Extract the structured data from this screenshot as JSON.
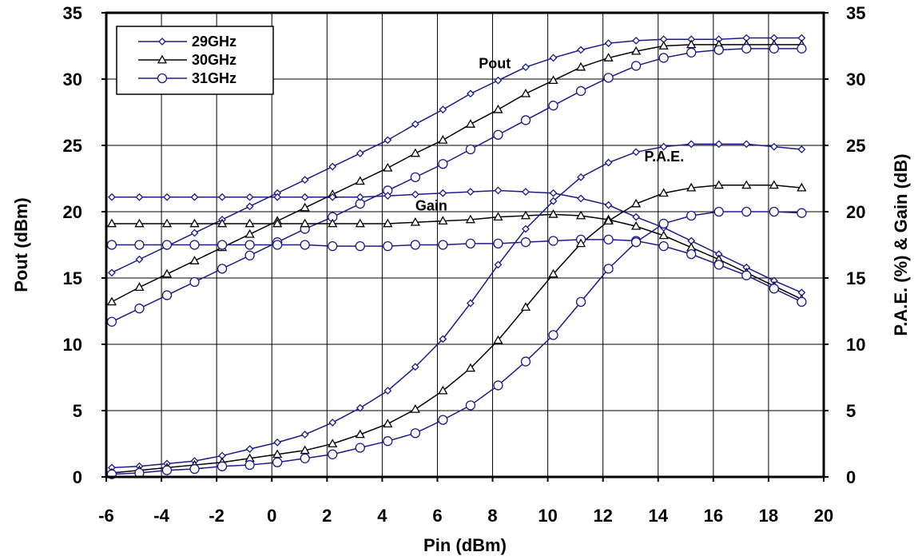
{
  "chart_data": {
    "type": "line",
    "xlabel": "Pin (dBm)",
    "ylabel_left": "Pout (dBm)",
    "ylabel_right": "P.A.E. (%) & Gain (dB)",
    "xlim": [
      -6,
      20
    ],
    "ylim_left": [
      0,
      35
    ],
    "ylim_right": [
      0,
      35
    ],
    "xticks": [
      -6,
      -4,
      -2,
      0,
      2,
      4,
      6,
      8,
      10,
      12,
      14,
      16,
      18,
      20
    ],
    "yticks_left": [
      0,
      5,
      10,
      15,
      20,
      25,
      30,
      35
    ],
    "yticks_right": [
      0,
      5,
      10,
      15,
      20,
      25,
      30,
      35
    ],
    "grid": true,
    "legend": {
      "placement": "top-left",
      "entries": [
        "29GHz",
        "30GHz",
        "31GHz"
      ]
    },
    "annotations": [
      {
        "text": "Pout",
        "x": 7.5,
        "y": 30.8
      },
      {
        "text": "P.A.E.",
        "x": 13.5,
        "y": 23.8
      },
      {
        "text": "Gain",
        "x": 5.2,
        "y": 20.1
      }
    ],
    "colors": {
      "29GHz": "#1a1a8c",
      "30GHz": "#000000",
      "31GHz": "#1a1a8c"
    },
    "x": [
      -5.8,
      -4.8,
      -3.8,
      -2.8,
      -1.8,
      -0.8,
      0.2,
      1.2,
      2.2,
      3.2,
      4.2,
      5.2,
      6.2,
      7.2,
      8.2,
      9.2,
      10.2,
      11.2,
      12.2,
      13.2,
      14.2,
      15.2,
      16.2,
      17.2,
      18.2,
      19.2
    ],
    "series": [
      {
        "name": "29GHz",
        "group": "Pout",
        "marker": "diamond",
        "values": [
          15.4,
          16.4,
          17.4,
          18.4,
          19.4,
          20.4,
          21.4,
          22.4,
          23.4,
          24.4,
          25.4,
          26.6,
          27.7,
          28.9,
          29.9,
          30.9,
          31.6,
          32.2,
          32.7,
          32.9,
          33.0,
          33.0,
          33.0,
          33.1,
          33.1,
          33.1
        ]
      },
      {
        "name": "30GHz",
        "group": "Pout",
        "marker": "triangle",
        "values": [
          13.2,
          14.3,
          15.3,
          16.3,
          17.3,
          18.3,
          19.3,
          20.3,
          21.3,
          22.3,
          23.3,
          24.4,
          25.4,
          26.6,
          27.7,
          28.9,
          29.9,
          30.9,
          31.6,
          32.1,
          32.5,
          32.6,
          32.6,
          32.6,
          32.6,
          32.6
        ]
      },
      {
        "name": "31GHz",
        "group": "Pout",
        "marker": "circle",
        "values": [
          11.7,
          12.7,
          13.7,
          14.7,
          15.7,
          16.7,
          17.7,
          18.7,
          19.6,
          20.6,
          21.6,
          22.6,
          23.6,
          24.7,
          25.8,
          26.9,
          28.0,
          29.1,
          30.1,
          31.0,
          31.6,
          32.0,
          32.2,
          32.3,
          32.3,
          32.3
        ]
      },
      {
        "name": "29GHz",
        "group": "Gain",
        "marker": "diamond",
        "values": [
          21.1,
          21.1,
          21.1,
          21.1,
          21.1,
          21.1,
          21.1,
          21.1,
          21.1,
          21.1,
          21.2,
          21.3,
          21.4,
          21.5,
          21.6,
          21.5,
          21.4,
          21.0,
          20.5,
          19.6,
          18.8,
          17.8,
          16.8,
          15.8,
          14.8,
          13.9
        ]
      },
      {
        "name": "30GHz",
        "group": "Gain",
        "marker": "triangle",
        "values": [
          19.1,
          19.1,
          19.1,
          19.1,
          19.1,
          19.1,
          19.1,
          19.1,
          19.1,
          19.1,
          19.1,
          19.2,
          19.3,
          19.4,
          19.6,
          19.7,
          19.8,
          19.7,
          19.4,
          18.9,
          18.2,
          17.3,
          16.4,
          15.4,
          14.4,
          13.4
        ]
      },
      {
        "name": "31GHz",
        "group": "Gain",
        "marker": "circle",
        "values": [
          17.5,
          17.5,
          17.5,
          17.5,
          17.5,
          17.5,
          17.5,
          17.5,
          17.4,
          17.4,
          17.4,
          17.5,
          17.5,
          17.6,
          17.6,
          17.7,
          17.8,
          17.9,
          17.9,
          17.8,
          17.4,
          16.8,
          16.0,
          15.2,
          14.2,
          13.2
        ]
      },
      {
        "name": "29GHz",
        "group": "PAE",
        "marker": "diamond",
        "values": [
          0.7,
          0.8,
          1.0,
          1.2,
          1.6,
          2.1,
          2.6,
          3.2,
          4.1,
          5.2,
          6.5,
          8.3,
          10.4,
          13.1,
          16.0,
          18.7,
          20.8,
          22.6,
          23.7,
          24.5,
          24.9,
          25.1,
          25.1,
          25.1,
          24.9,
          24.7
        ]
      },
      {
        "name": "30GHz",
        "group": "PAE",
        "marker": "triangle",
        "values": [
          0.3,
          0.5,
          0.7,
          0.9,
          1.1,
          1.4,
          1.7,
          2.0,
          2.5,
          3.2,
          4.0,
          5.1,
          6.5,
          8.2,
          10.3,
          12.8,
          15.3,
          17.6,
          19.3,
          20.6,
          21.4,
          21.8,
          22.0,
          22.0,
          22.0,
          21.8
        ]
      },
      {
        "name": "31GHz",
        "group": "PAE",
        "marker": "circle",
        "values": [
          0.2,
          0.3,
          0.5,
          0.6,
          0.8,
          0.9,
          1.1,
          1.4,
          1.7,
          2.2,
          2.7,
          3.3,
          4.3,
          5.4,
          6.9,
          8.7,
          10.7,
          13.2,
          15.7,
          17.7,
          19.1,
          19.7,
          20.0,
          20.0,
          20.0,
          19.9
        ]
      }
    ]
  }
}
